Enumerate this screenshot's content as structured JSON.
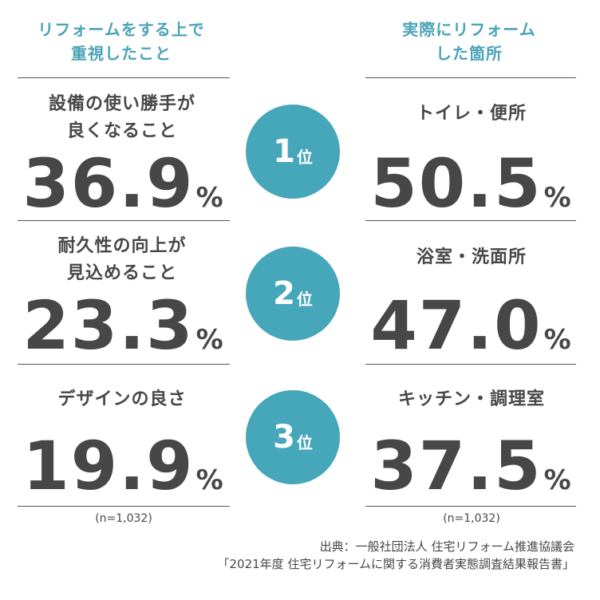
{
  "headers": {
    "left": [
      "リフォームをする上で",
      "重視したこと"
    ],
    "right": [
      "実際にリフォーム",
      "した箇所"
    ]
  },
  "ranks": [
    {
      "number": "1",
      "unit": "位",
      "left_label": [
        "設備の使い勝手が",
        "良くなること"
      ],
      "left_value": "36.9",
      "left_unit": "%",
      "right_label": [
        "トイレ・便所"
      ],
      "right_value": "50.5",
      "right_unit": "%"
    },
    {
      "number": "2",
      "unit": "位",
      "left_label": [
        "耐久性の向上が",
        "見込めること"
      ],
      "left_value": "23.3",
      "left_unit": "%",
      "right_label": [
        "浴室・洗面所"
      ],
      "right_value": "47.0",
      "right_unit": "%"
    },
    {
      "number": "3",
      "unit": "位",
      "left_label": [
        "デザインの良さ"
      ],
      "left_value": "19.9",
      "left_unit": "%",
      "right_label": [
        "キッチン・調理室"
      ],
      "right_value": "37.5",
      "right_unit": "%"
    }
  ],
  "sample_left": "(n=1,032)",
  "sample_right": "(n=1,032)",
  "source": {
    "line1": "出典：一般社団法人 住宅リフォーム推進協議会",
    "line2": "「2021年度 住宅リフォームに関する消費者実態調査結果報告書」"
  },
  "colors": {
    "accent": "#46a6ba",
    "text": "#474747"
  }
}
